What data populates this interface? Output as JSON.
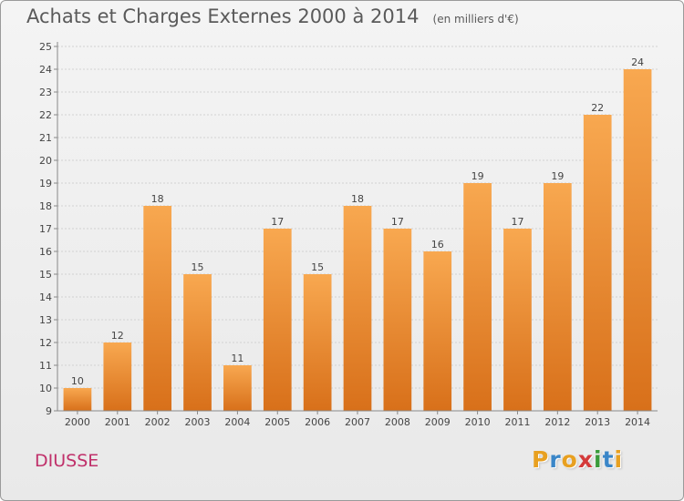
{
  "header": {
    "title": "Achats et Charges Externes 2000 à 2014",
    "unit": "(en milliers d'€)"
  },
  "commune": "DIUSSE",
  "logo": {
    "text": "Proxiti",
    "letters": [
      {
        "char": "P",
        "color": "#e8a020"
      },
      {
        "char": "r",
        "color": "#3a86c8"
      },
      {
        "char": "o",
        "color": "#e8a020"
      },
      {
        "char": "x",
        "color": "#d43a3a"
      },
      {
        "char": "i",
        "color": "#3a9a3a"
      },
      {
        "char": "t",
        "color": "#3a86c8"
      },
      {
        "char": "i",
        "color": "#e8a020"
      }
    ]
  },
  "colors": {
    "bar_top": "#f8a850",
    "bar_bottom": "#d8701a",
    "grid": "#d2d2d2",
    "axis": "#888888"
  },
  "chart_data": {
    "type": "bar",
    "title": "Achats et Charges Externes 2000 à 2014",
    "subtitle": "(en milliers d'€)",
    "categories": [
      "2000",
      "2001",
      "2002",
      "2003",
      "2004",
      "2005",
      "2006",
      "2007",
      "2008",
      "2009",
      "2010",
      "2011",
      "2012",
      "2013",
      "2014"
    ],
    "values": [
      10,
      12,
      18,
      15,
      11,
      17,
      15,
      18,
      17,
      16,
      19,
      17,
      19,
      22,
      24
    ],
    "data_labels": [
      "10",
      "12",
      "18",
      "15",
      "11",
      "17",
      "15",
      "18",
      "17",
      "16",
      "19",
      "17",
      "19",
      "22",
      "24"
    ],
    "yticks": [
      "9",
      "10",
      "11",
      "12",
      "13",
      "14",
      "15",
      "16",
      "17",
      "18",
      "19",
      "20",
      "21",
      "22",
      "23",
      "24",
      "25"
    ],
    "ylim": [
      9,
      25
    ],
    "grid": true,
    "legend": "none"
  }
}
